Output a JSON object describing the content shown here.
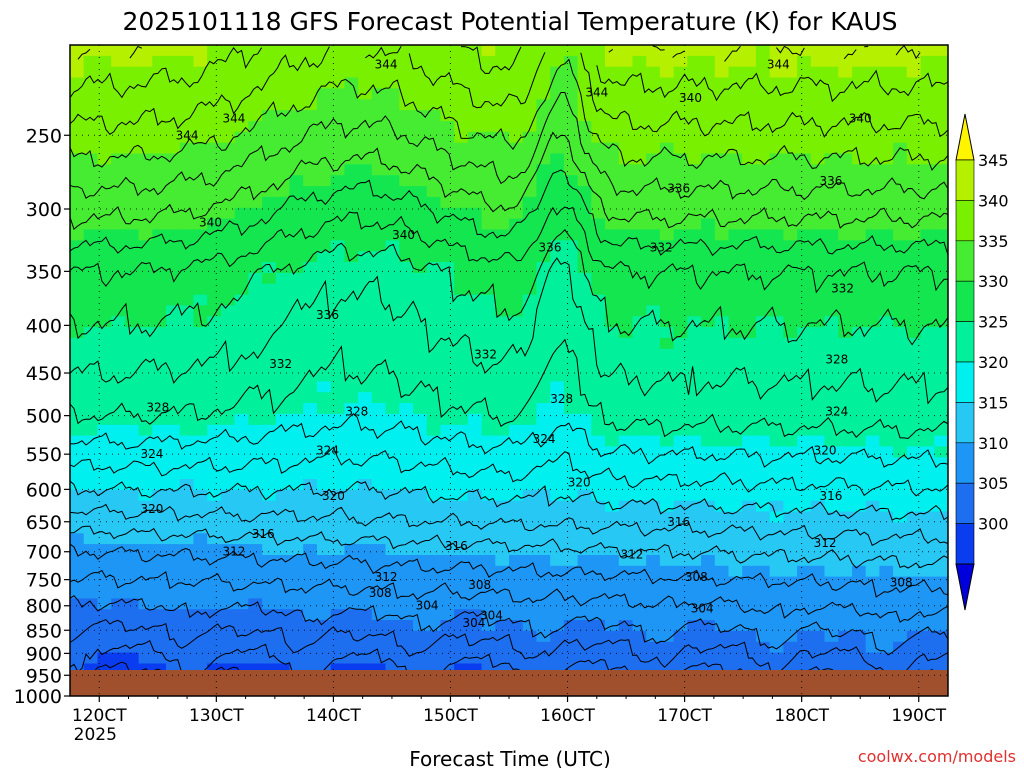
{
  "chart_data": {
    "type": "heatmap",
    "title": "2025101118 GFS Forecast Potential Temperature (K) for KAUS",
    "xlabel": "Forecast Time (UTC)",
    "ylabel": "",
    "credit": "coolwx.com/models",
    "x_ticks": [
      {
        "day": 12,
        "label": "120CT",
        "sublabel": "2025"
      },
      {
        "day": 13,
        "label": "130CT",
        "sublabel": ""
      },
      {
        "day": 14,
        "label": "140CT",
        "sublabel": ""
      },
      {
        "day": 15,
        "label": "150CT",
        "sublabel": ""
      },
      {
        "day": 16,
        "label": "160CT",
        "sublabel": ""
      },
      {
        "day": 17,
        "label": "170CT",
        "sublabel": ""
      },
      {
        "day": 18,
        "label": "180CT",
        "sublabel": ""
      },
      {
        "day": 19,
        "label": "190CT",
        "sublabel": ""
      }
    ],
    "x_range_days": [
      11.75,
      19.25
    ],
    "y_ticks": [
      250,
      300,
      350,
      400,
      450,
      500,
      550,
      600,
      650,
      700,
      750,
      800,
      850,
      900,
      950,
      1000
    ],
    "y_range_hpa": [
      200,
      1000
    ],
    "y_scale": "log",
    "grid": true,
    "colorbar": {
      "levels": [
        300,
        305,
        310,
        315,
        320,
        325,
        330,
        335,
        340,
        345
      ],
      "colors": [
        "#0000dc",
        "#0a3cf0",
        "#1e6ef0",
        "#1e96f5",
        "#28c8f5",
        "#00f0f0",
        "#00f09c",
        "#14e650",
        "#46ec32",
        "#78f000",
        "#b4f000",
        "#fff500"
      ],
      "placement": "right"
    },
    "ground_color": "#a0502d",
    "contour_values": [
      302,
      304,
      306,
      308,
      310,
      312,
      314,
      316,
      318,
      320,
      322,
      324,
      326,
      328,
      330,
      332,
      334,
      336,
      338,
      340,
      342,
      344,
      346
    ],
    "contour_labels": [
      {
        "day": 12.75,
        "hpa": 250,
        "value": "344"
      },
      {
        "day": 13.15,
        "hpa": 240,
        "value": "344"
      },
      {
        "day": 14.45,
        "hpa": 210,
        "value": "344"
      },
      {
        "day": 16.25,
        "hpa": 225,
        "value": "344"
      },
      {
        "day": 17.8,
        "hpa": 210,
        "value": "344"
      },
      {
        "day": 17.05,
        "hpa": 228,
        "value": "340"
      },
      {
        "day": 18.5,
        "hpa": 240,
        "value": "340"
      },
      {
        "day": 12.95,
        "hpa": 310,
        "value": "340"
      },
      {
        "day": 14.6,
        "hpa": 320,
        "value": "340"
      },
      {
        "day": 16.95,
        "hpa": 285,
        "value": "336"
      },
      {
        "day": 18.25,
        "hpa": 280,
        "value": "336"
      },
      {
        "day": 15.85,
        "hpa": 330,
        "value": "336"
      },
      {
        "day": 16.8,
        "hpa": 330,
        "value": "332"
      },
      {
        "day": 18.35,
        "hpa": 365,
        "value": "332"
      },
      {
        "day": 13.95,
        "hpa": 390,
        "value": "336"
      },
      {
        "day": 13.55,
        "hpa": 440,
        "value": "332"
      },
      {
        "day": 15.3,
        "hpa": 430,
        "value": "332"
      },
      {
        "day": 18.3,
        "hpa": 435,
        "value": "328"
      },
      {
        "day": 15.95,
        "hpa": 480,
        "value": "328"
      },
      {
        "day": 12.5,
        "hpa": 490,
        "value": "328"
      },
      {
        "day": 14.2,
        "hpa": 495,
        "value": "328"
      },
      {
        "day": 18.3,
        "hpa": 495,
        "value": "324"
      },
      {
        "day": 15.8,
        "hpa": 530,
        "value": "324"
      },
      {
        "day": 12.45,
        "hpa": 550,
        "value": "324"
      },
      {
        "day": 13.95,
        "hpa": 545,
        "value": "324"
      },
      {
        "day": 18.2,
        "hpa": 545,
        "value": "320"
      },
      {
        "day": 16.1,
        "hpa": 590,
        "value": "320"
      },
      {
        "day": 14.0,
        "hpa": 610,
        "value": "320"
      },
      {
        "day": 12.45,
        "hpa": 630,
        "value": "320"
      },
      {
        "day": 18.25,
        "hpa": 610,
        "value": "316"
      },
      {
        "day": 16.95,
        "hpa": 650,
        "value": "316"
      },
      {
        "day": 13.4,
        "hpa": 670,
        "value": "316"
      },
      {
        "day": 15.05,
        "hpa": 690,
        "value": "316"
      },
      {
        "day": 13.15,
        "hpa": 700,
        "value": "312"
      },
      {
        "day": 16.55,
        "hpa": 705,
        "value": "312"
      },
      {
        "day": 18.2,
        "hpa": 685,
        "value": "312"
      },
      {
        "day": 14.45,
        "hpa": 745,
        "value": "312"
      },
      {
        "day": 17.1,
        "hpa": 745,
        "value": "308"
      },
      {
        "day": 18.85,
        "hpa": 755,
        "value": "308"
      },
      {
        "day": 14.4,
        "hpa": 775,
        "value": "308"
      },
      {
        "day": 15.25,
        "hpa": 760,
        "value": "308"
      },
      {
        "day": 14.8,
        "hpa": 800,
        "value": "304"
      },
      {
        "day": 15.35,
        "hpa": 820,
        "value": "304"
      },
      {
        "day": 17.15,
        "hpa": 805,
        "value": "304"
      },
      {
        "day": 15.2,
        "hpa": 835,
        "value": "304"
      }
    ]
  }
}
